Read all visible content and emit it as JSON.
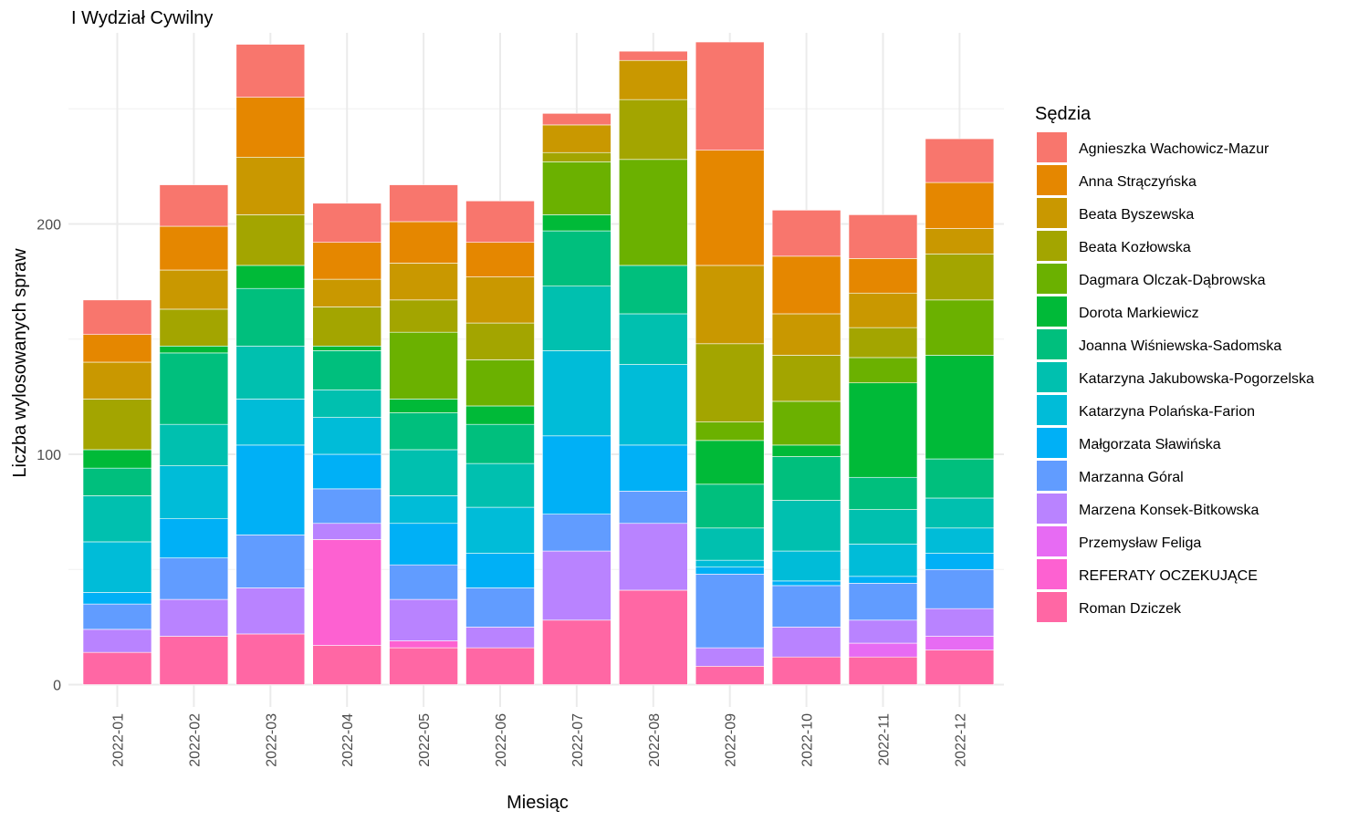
{
  "chart_data": {
    "type": "bar",
    "stacked": true,
    "title": "I Wydział Cywilny",
    "xlabel": "Miesiąc",
    "ylabel": "Liczba wylosowanych spraw",
    "ylim": [
      0,
      282
    ],
    "yticks": [
      0,
      100,
      200
    ],
    "grid": true,
    "legend_title": "Sędzia",
    "legend_position": "right",
    "categories": [
      "2022-01",
      "2022-02",
      "2022-03",
      "2022-04",
      "2022-05",
      "2022-06",
      "2022-07",
      "2022-08",
      "2022-09",
      "2022-10",
      "2022-11",
      "2022-12"
    ],
    "series": [
      {
        "name": "Agnieszka Wachowicz-Mazur",
        "color": "#F8766D",
        "values": [
          15,
          18,
          23,
          17,
          16,
          18,
          5,
          4,
          47,
          20,
          19,
          19
        ]
      },
      {
        "name": "Anna Strączyńska",
        "color": "#E58700",
        "values": [
          12,
          19,
          26,
          16,
          18,
          15,
          0,
          0,
          50,
          25,
          15,
          20
        ]
      },
      {
        "name": "Beata Byszewska",
        "color": "#C99800",
        "values": [
          16,
          17,
          25,
          12,
          16,
          20,
          12,
          17,
          34,
          18,
          15,
          11
        ]
      },
      {
        "name": "Beata Kozłowska",
        "color": "#A3A500",
        "values": [
          22,
          16,
          22,
          17,
          14,
          16,
          4,
          26,
          34,
          20,
          13,
          20
        ]
      },
      {
        "name": "Dagmara Olczak-Dąbrowska",
        "color": "#6BB100",
        "values": [
          0,
          0,
          0,
          0,
          29,
          20,
          23,
          46,
          8,
          19,
          11,
          24
        ]
      },
      {
        "name": "Dorota Markiewicz",
        "color": "#00BA38",
        "values": [
          8,
          3,
          10,
          2,
          6,
          8,
          7,
          0,
          19,
          5,
          41,
          45
        ]
      },
      {
        "name": "Joanna Wiśniewska-Sadomska",
        "color": "#00BF7D",
        "values": [
          12,
          31,
          25,
          17,
          16,
          17,
          24,
          21,
          19,
          19,
          14,
          17
        ]
      },
      {
        "name": "Katarzyna Jakubowska-Pogorzelska",
        "color": "#00C0AF",
        "values": [
          20,
          18,
          23,
          12,
          20,
          19,
          28,
          22,
          14,
          22,
          15,
          13
        ]
      },
      {
        "name": "Katarzyna Polańska-Farion",
        "color": "#00BCD8",
        "values": [
          22,
          23,
          20,
          16,
          12,
          20,
          37,
          35,
          3,
          13,
          14,
          11
        ]
      },
      {
        "name": "Małgorzata Sławińska",
        "color": "#00B0F6",
        "values": [
          5,
          17,
          39,
          15,
          18,
          15,
          34,
          20,
          3,
          2,
          3,
          7
        ]
      },
      {
        "name": "Marzanna Góral",
        "color": "#619CFF",
        "values": [
          11,
          18,
          23,
          15,
          15,
          17,
          16,
          14,
          32,
          18,
          16,
          17
        ]
      },
      {
        "name": "Marzena Konsek-Bitkowska",
        "color": "#B983FF",
        "values": [
          10,
          16,
          20,
          7,
          18,
          9,
          30,
          29,
          8,
          13,
          10,
          12
        ]
      },
      {
        "name": "Przemysław Feliga",
        "color": "#E76BF3",
        "values": [
          0,
          0,
          0,
          0,
          0,
          0,
          0,
          0,
          0,
          0,
          6,
          6
        ]
      },
      {
        "name": "REFERATY OCZEKUJĄCE",
        "color": "#FD61D1",
        "values": [
          0,
          0,
          0,
          46,
          3,
          0,
          0,
          0,
          0,
          0,
          0,
          0
        ]
      },
      {
        "name": "Roman Dziczek",
        "color": "#FF67A4",
        "values": [
          14,
          21,
          22,
          17,
          16,
          16,
          28,
          41,
          8,
          12,
          12,
          15
        ]
      }
    ]
  }
}
